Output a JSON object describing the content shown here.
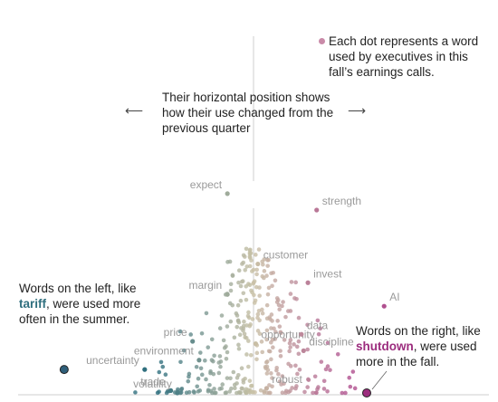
{
  "annotations": {
    "legend_note": "Each dot represents a word used by executives in this fall’s earnings calls.",
    "axis_note": "Their horizontal position shows how their use changed from the previous quarter",
    "arrow_left": "⟵",
    "arrow_right": "⟶",
    "left_note": {
      "prefix": "Words on the left, like ",
      "keyword": "tariff",
      "suffix": ", were used more often in the summer."
    },
    "right_note": {
      "prefix": "Words on the right, like ",
      "keyword": "shutdown",
      "suffix": ", were used more in the fall."
    }
  },
  "colors": {
    "left": "#2f6f7e",
    "neutral": "#c9c1a6",
    "right": "#b0508f",
    "highlight_left": "#2f5f7a",
    "highlight_right": "#9c2d7e",
    "label": "#9a9a9a",
    "center_line": "#cfcfcf"
  },
  "chart_data": {
    "type": "scatter",
    "title": "",
    "xlabel": "",
    "ylabel": "",
    "labeled_words": [
      {
        "label": "expect",
        "x": -0.6,
        "y": 0.85
      },
      {
        "label": "strength",
        "x": 1.45,
        "y": 0.78
      },
      {
        "label": "customer",
        "x": 0.1,
        "y": 0.55
      },
      {
        "label": "invest",
        "x": 1.25,
        "y": 0.47
      },
      {
        "label": "margin",
        "x": -0.6,
        "y": 0.42
      },
      {
        "label": "AI",
        "x": 3.0,
        "y": 0.37
      },
      {
        "label": "price",
        "x": -1.4,
        "y": 0.22
      },
      {
        "label": "opportunity",
        "x": 0.05,
        "y": 0.21
      },
      {
        "label": "data",
        "x": 1.1,
        "y": 0.25
      },
      {
        "label": "discipline",
        "x": 1.15,
        "y": 0.18
      },
      {
        "label": "environment",
        "x": -1.25,
        "y": 0.14
      },
      {
        "label": "uncertainty",
        "x": -2.5,
        "y": 0.1
      },
      {
        "label": "trade",
        "x": -1.9,
        "y": 0.01
      },
      {
        "label": "robust",
        "x": 0.3,
        "y": 0.02
      },
      {
        "label": "volatility",
        "x": -1.75,
        "y": 0.0
      },
      {
        "label": "tariff",
        "x": -4.35,
        "y": 0.1
      },
      {
        "label": "shutdown",
        "x": 2.6,
        "y": 0.0
      }
    ],
    "highlighted": [
      "tariff",
      "shutdown"
    ],
    "printed_labels": [
      "expect",
      "strength",
      "customer",
      "invest",
      "margin",
      "AI",
      "price",
      "opportunity",
      "data",
      "discipline",
      "environment",
      "uncertainty",
      "trade",
      "robust",
      "volatility"
    ],
    "xlim": [
      -5.2,
      5.2
    ],
    "ylim": [
      0,
      1
    ],
    "grid": false,
    "center_line": true
  }
}
